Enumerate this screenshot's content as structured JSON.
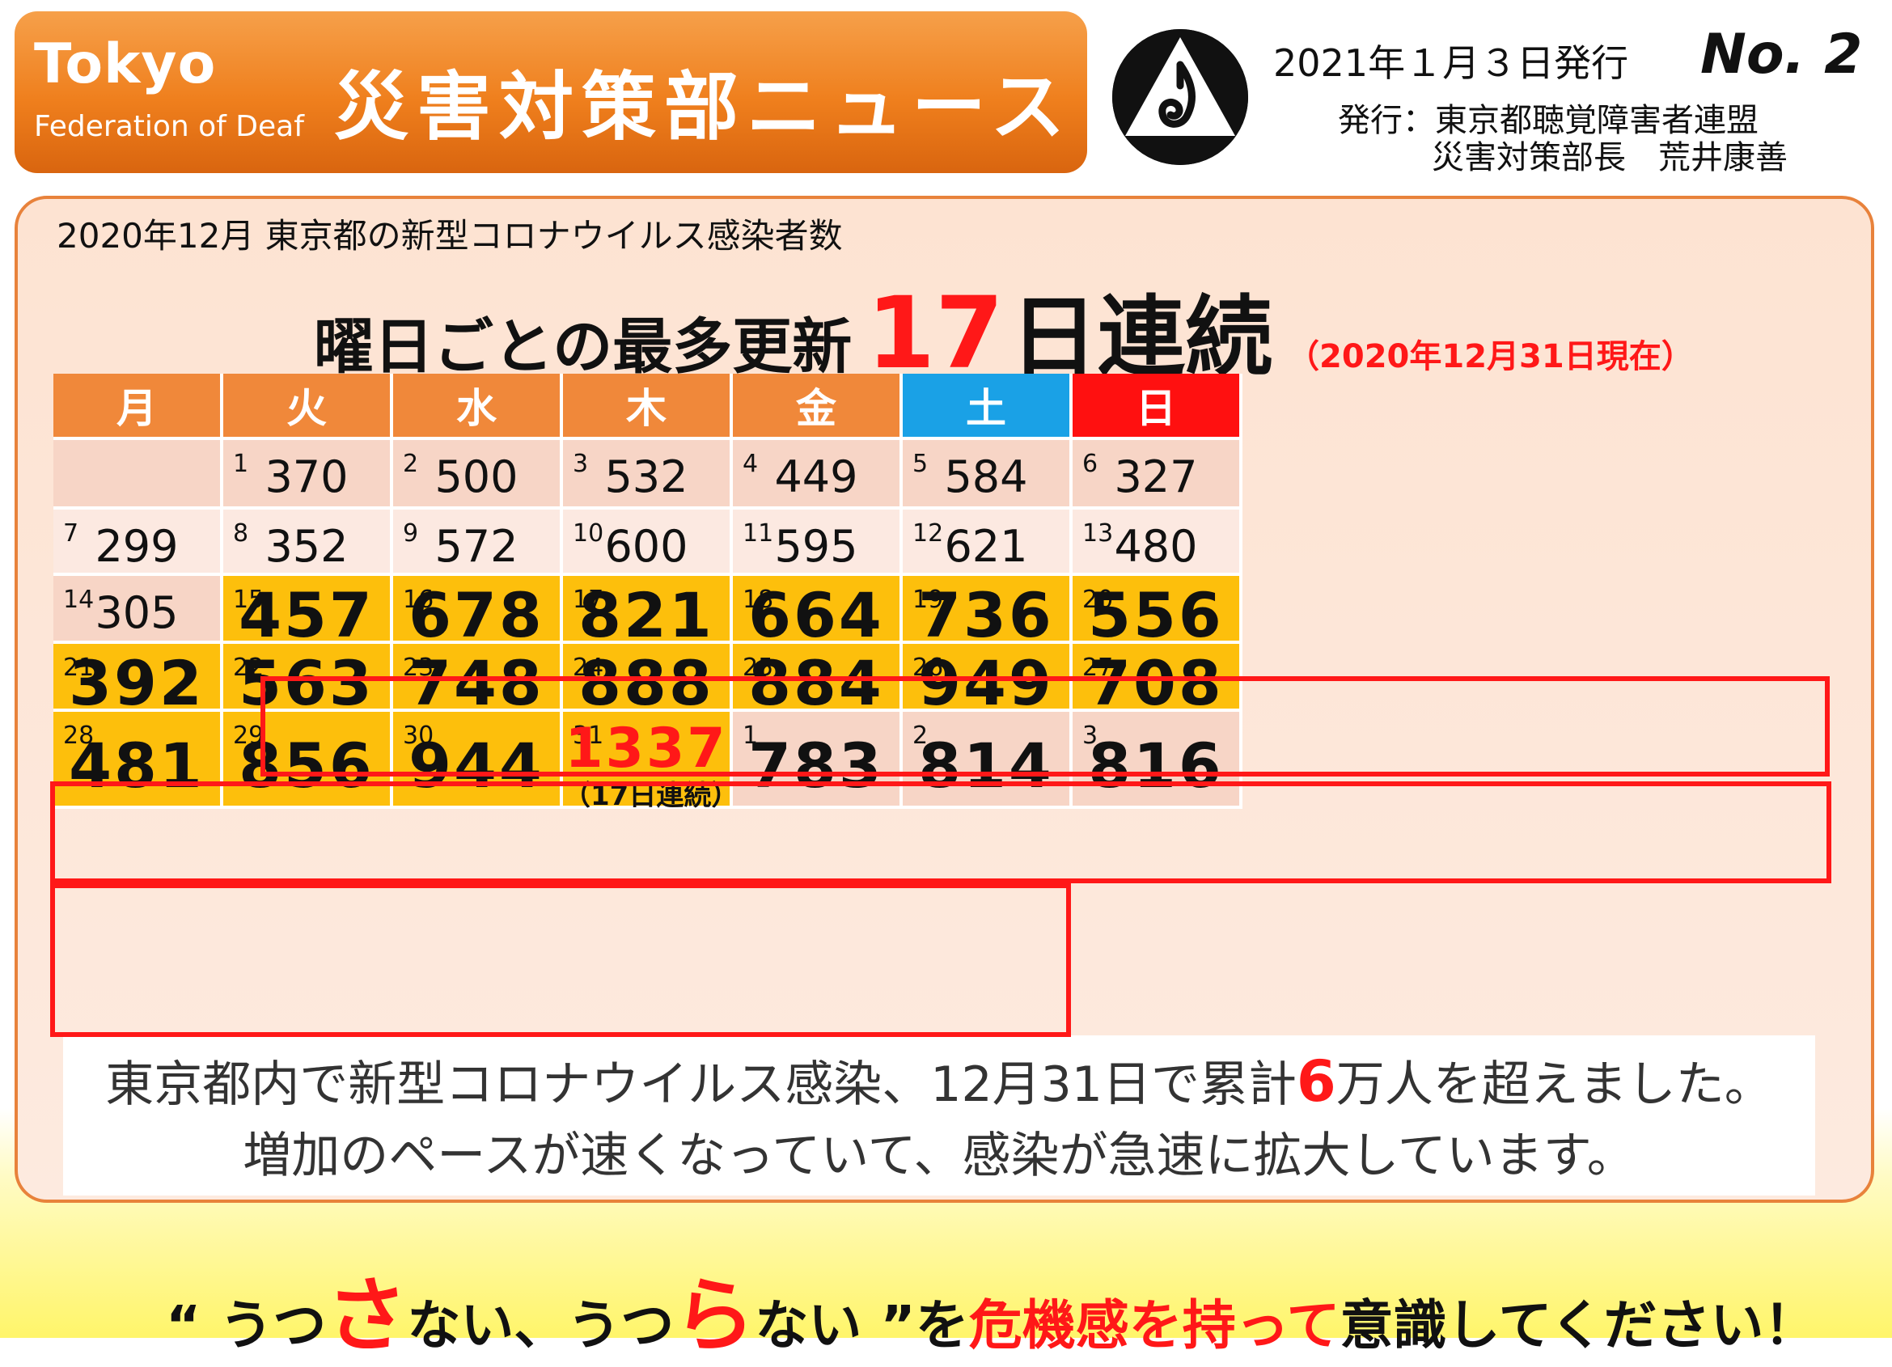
{
  "header": {
    "org_name": "Tokyo",
    "org_sub": "Federation of Deaf",
    "title": "災害対策部ニュース",
    "issue_date": "2021年１月３日発行",
    "issue_no": "No. 2",
    "publisher": "発行：東京都聴覚障害者連盟",
    "director": "災害対策部長　荒井康善",
    "logo_icon": "federation-logo-icon"
  },
  "panel": {
    "caption": "2020年12月  東京都の新型コロナウイルス感染者数",
    "headline_pre": "曜日ごとの最多更新",
    "headline_num": "17",
    "headline_post": "日連続",
    "headline_asof": "（2020年12月31日現在）"
  },
  "calendar": {
    "weekdays": [
      "月",
      "火",
      "水",
      "木",
      "金",
      "土",
      "日"
    ],
    "colors": {
      "header": "#f0883a",
      "saturday": "#1aa1e6",
      "sunday": "#ff1010",
      "record": "#fdbf0c",
      "highlight_border": "#ff1818"
    },
    "rows": [
      [
        {
          "day": "",
          "value": "",
          "style": "blank"
        },
        {
          "day": "1",
          "value": "370",
          "style": "normal"
        },
        {
          "day": "2",
          "value": "500",
          "style": "normal"
        },
        {
          "day": "3",
          "value": "532",
          "style": "normal"
        },
        {
          "day": "4",
          "value": "449",
          "style": "normal"
        },
        {
          "day": "5",
          "value": "584",
          "style": "normal"
        },
        {
          "day": "6",
          "value": "327",
          "style": "normal"
        }
      ],
      [
        {
          "day": "7",
          "value": "299",
          "style": "light"
        },
        {
          "day": "8",
          "value": "352",
          "style": "light"
        },
        {
          "day": "9",
          "value": "572",
          "style": "light"
        },
        {
          "day": "10",
          "value": "600",
          "style": "light"
        },
        {
          "day": "11",
          "value": "595",
          "style": "light"
        },
        {
          "day": "12",
          "value": "621",
          "style": "light"
        },
        {
          "day": "13",
          "value": "480",
          "style": "light"
        }
      ],
      [
        {
          "day": "14",
          "value": "305",
          "style": "normal"
        },
        {
          "day": "15",
          "value": "457",
          "style": "hot"
        },
        {
          "day": "16",
          "value": "678",
          "style": "hot"
        },
        {
          "day": "17",
          "value": "821",
          "style": "hot"
        },
        {
          "day": "18",
          "value": "664",
          "style": "hot"
        },
        {
          "day": "19",
          "value": "736",
          "style": "hot"
        },
        {
          "day": "20",
          "value": "556",
          "style": "hot"
        }
      ],
      [
        {
          "day": "21",
          "value": "392",
          "style": "hot"
        },
        {
          "day": "22",
          "value": "563",
          "style": "hot"
        },
        {
          "day": "23",
          "value": "748",
          "style": "hot"
        },
        {
          "day": "24",
          "value": "888",
          "style": "hot"
        },
        {
          "day": "25",
          "value": "884",
          "style": "hot"
        },
        {
          "day": "26",
          "value": "949",
          "style": "hot"
        },
        {
          "day": "27",
          "value": "708",
          "style": "hot"
        }
      ],
      [
        {
          "day": "28",
          "value": "481",
          "style": "hot"
        },
        {
          "day": "29",
          "value": "856",
          "style": "hot"
        },
        {
          "day": "30",
          "value": "944",
          "style": "hot"
        },
        {
          "day": "31",
          "value": "1337",
          "style": "record",
          "note": "（17日連続）"
        },
        {
          "day": "1",
          "value": "783",
          "style": "big"
        },
        {
          "day": "2",
          "value": "814",
          "style": "big"
        },
        {
          "day": "3",
          "value": "816",
          "style": "big"
        }
      ]
    ]
  },
  "summary": {
    "line1_pre": "東京都内で新型コロナウイルス感染、12月31日で累計",
    "line1_num": "6",
    "line1_post": "万人を超えました。",
    "line2": "増加のペースが速くなっていて、感染が急速に拡大しています。"
  },
  "slogan": {
    "open_quote": "“",
    "s1": "うつ",
    "s2": "さ",
    "s3": "ない、うつ",
    "s4": "ら",
    "s5": "ない",
    "close_quote": "”",
    "s6": "を",
    "s7": "危機感を持って",
    "s8": "意識してください！"
  }
}
